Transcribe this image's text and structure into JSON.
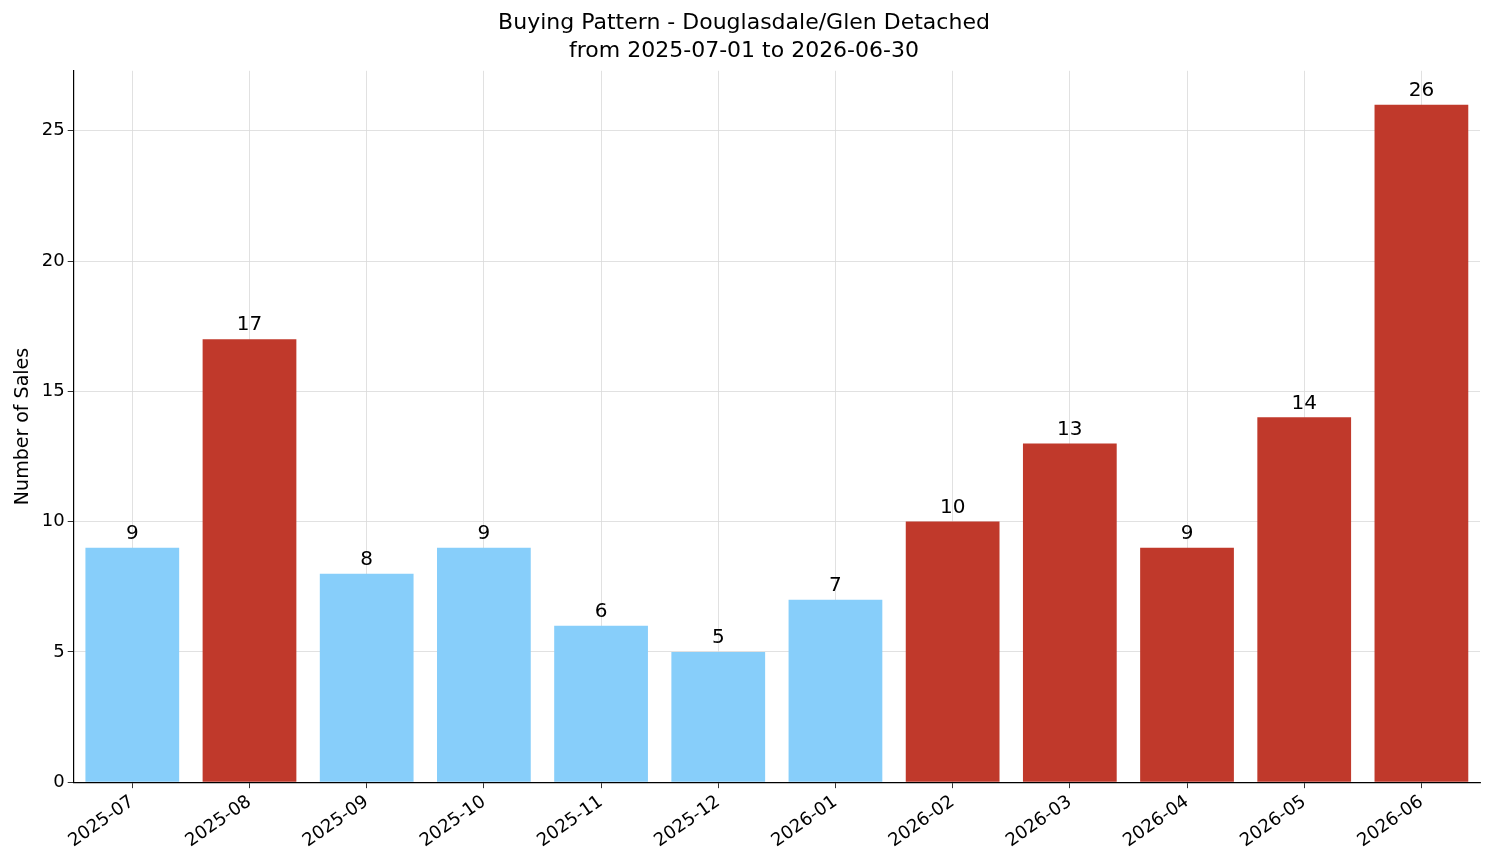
{
  "chart_data": {
    "type": "bar",
    "title": "Buying Pattern - Douglasdale/Glen Detached",
    "subtitle": "from 2025-07-01 to 2026-06-30",
    "ylabel": "Number of Sales",
    "categories": [
      "2025-07",
      "2025-08",
      "2025-09",
      "2025-10",
      "2025-11",
      "2025-12",
      "2026-01",
      "2026-02",
      "2026-03",
      "2026-04",
      "2026-05",
      "2026-06"
    ],
    "values": [
      9,
      17,
      8,
      9,
      6,
      5,
      7,
      10,
      13,
      9,
      14,
      26
    ],
    "colors": [
      "#87cefa",
      "#c0392b",
      "#87cefa",
      "#87cefa",
      "#87cefa",
      "#87cefa",
      "#87cefa",
      "#c0392b",
      "#c0392b",
      "#c0392b",
      "#c0392b",
      "#c0392b"
    ],
    "ylim": [
      0,
      27.3
    ],
    "yticks": [
      0,
      5,
      10,
      15,
      20,
      25
    ],
    "grid": true,
    "data_labels": true
  }
}
